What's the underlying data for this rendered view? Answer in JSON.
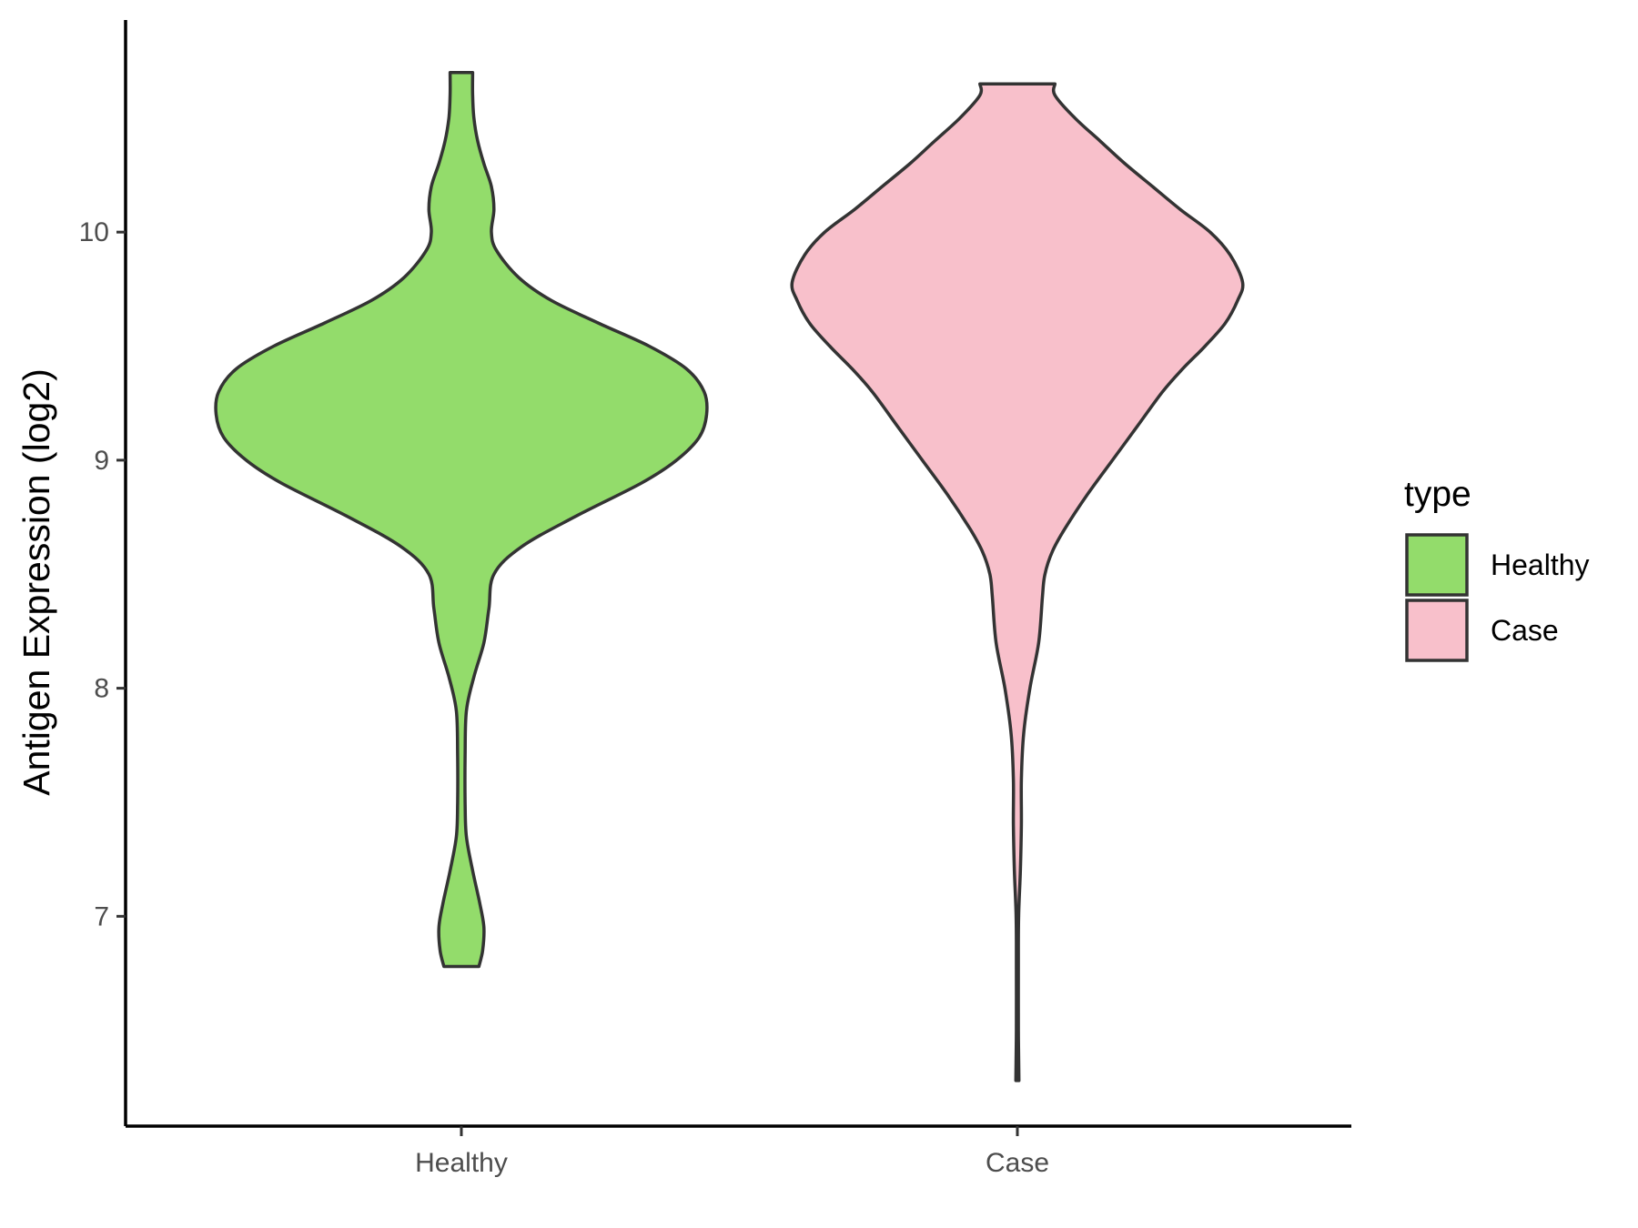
{
  "chart_data": {
    "type": "violin",
    "title": "",
    "xlabel": "",
    "ylabel": "Antigen Expression (log2)",
    "ylim": [
      6.08,
      10.93
    ],
    "yticks": [
      7,
      8,
      9,
      10
    ],
    "categories": [
      "Healthy",
      "Case"
    ],
    "grid": false,
    "legend": {
      "title": "type",
      "position": "right",
      "entries": [
        "Healthy",
        "Case"
      ]
    },
    "series": [
      {
        "name": "Healthy",
        "category": "Healthy",
        "color": "#93dc6b",
        "min": 6.78,
        "max": 10.7,
        "density_profile": [
          [
            6.78,
            0.07
          ],
          [
            6.85,
            0.085
          ],
          [
            6.95,
            0.09
          ],
          [
            7.05,
            0.075
          ],
          [
            7.2,
            0.045
          ],
          [
            7.35,
            0.02
          ],
          [
            7.5,
            0.015
          ],
          [
            7.7,
            0.015
          ],
          [
            7.9,
            0.02
          ],
          [
            8.05,
            0.05
          ],
          [
            8.2,
            0.09
          ],
          [
            8.35,
            0.11
          ],
          [
            8.5,
            0.13
          ],
          [
            8.62,
            0.24
          ],
          [
            8.75,
            0.45
          ],
          [
            8.9,
            0.72
          ],
          [
            9.0,
            0.86
          ],
          [
            9.1,
            0.95
          ],
          [
            9.2,
            0.98
          ],
          [
            9.3,
            0.97
          ],
          [
            9.4,
            0.9
          ],
          [
            9.5,
            0.75
          ],
          [
            9.6,
            0.55
          ],
          [
            9.7,
            0.36
          ],
          [
            9.8,
            0.23
          ],
          [
            9.92,
            0.14
          ],
          [
            10.0,
            0.12
          ],
          [
            10.1,
            0.13
          ],
          [
            10.2,
            0.12
          ],
          [
            10.3,
            0.09
          ],
          [
            10.4,
            0.065
          ],
          [
            10.5,
            0.05
          ],
          [
            10.6,
            0.045
          ],
          [
            10.7,
            0.045
          ]
        ]
      },
      {
        "name": "Case",
        "category": "Case",
        "color": "#f8c0cb",
        "min": 6.28,
        "max": 10.65,
        "density_profile": [
          [
            6.28,
            0.006
          ],
          [
            6.5,
            0.004
          ],
          [
            6.8,
            0.004
          ],
          [
            7.0,
            0.005
          ],
          [
            7.2,
            0.012
          ],
          [
            7.4,
            0.016
          ],
          [
            7.6,
            0.016
          ],
          [
            7.8,
            0.025
          ],
          [
            8.0,
            0.05
          ],
          [
            8.2,
            0.085
          ],
          [
            8.4,
            0.1
          ],
          [
            8.5,
            0.11
          ],
          [
            8.6,
            0.14
          ],
          [
            8.7,
            0.19
          ],
          [
            8.85,
            0.28
          ],
          [
            9.0,
            0.38
          ],
          [
            9.15,
            0.48
          ],
          [
            9.3,
            0.58
          ],
          [
            9.4,
            0.66
          ],
          [
            9.5,
            0.75
          ],
          [
            9.6,
            0.83
          ],
          [
            9.7,
            0.88
          ],
          [
            9.78,
            0.9
          ],
          [
            9.9,
            0.85
          ],
          [
            10.0,
            0.77
          ],
          [
            10.1,
            0.65
          ],
          [
            10.2,
            0.54
          ],
          [
            10.3,
            0.43
          ],
          [
            10.4,
            0.33
          ],
          [
            10.5,
            0.23
          ],
          [
            10.6,
            0.15
          ],
          [
            10.65,
            0.15
          ]
        ]
      }
    ]
  }
}
